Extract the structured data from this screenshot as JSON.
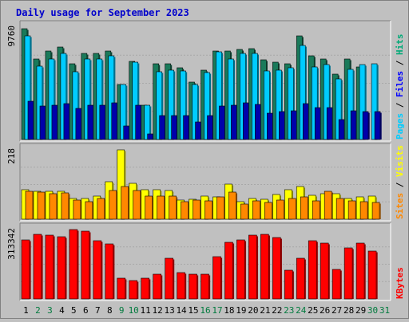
{
  "chart_data": {
    "type": "bar",
    "title": "Daily usage for September 2023",
    "categories": [
      "1",
      "2",
      "3",
      "4",
      "5",
      "6",
      "7",
      "8",
      "9",
      "10",
      "11",
      "12",
      "13",
      "14",
      "15",
      "16",
      "17",
      "18",
      "19",
      "20",
      "21",
      "22",
      "23",
      "24",
      "25",
      "26",
      "27",
      "28",
      "29",
      "30",
      "31"
    ],
    "weekend_days": [
      "2",
      "3",
      "9",
      "10",
      "16",
      "17",
      "23",
      "24",
      "30",
      "31"
    ],
    "panels": [
      {
        "id": "pages-files-hits",
        "scale_label": "9760",
        "ymax": 9760,
        "legend": [
          "Pages",
          "Files",
          "Hits"
        ],
        "series": [
          {
            "name": "Hits",
            "color": "#1a7a5a",
            "values": [
              9650,
              7000,
              7650,
              8000,
              6600,
              7500,
              7500,
              7700,
              4800,
              6800,
              3000,
              6600,
              6600,
              6200,
              5000,
              6000,
              7700,
              7650,
              7800,
              7900,
              6900,
              6700,
              6600,
              9000,
              7250,
              7000,
              5700,
              7000,
              6300,
              null,
              null
            ]
          },
          {
            "name": "Files",
            "color": "#00ccff",
            "values": [
              9000,
              6400,
              7000,
              7500,
              5900,
              7000,
              7000,
              7250,
              4750,
              6700,
              2950,
              5900,
              6000,
              5950,
              4800,
              5800,
              7600,
              7000,
              7500,
              7500,
              5950,
              6000,
              6200,
              8200,
              6300,
              6500,
              5250,
              6100,
              6500,
              6550,
              null
            ]
          },
          {
            "name": "Pages",
            "color": "#0000aa",
            "values": [
              3300,
              2900,
              3000,
              3100,
              2700,
              3000,
              3000,
              3150,
              1200,
              3000,
              500,
              2100,
              2100,
              2100,
              1500,
              2100,
              2900,
              3000,
              3200,
              3050,
              2300,
              2400,
              2500,
              3100,
              2800,
              2800,
              1700,
              2500,
              2400,
              2400,
              null
            ]
          }
        ]
      },
      {
        "id": "visits-sites",
        "scale_label": "218",
        "ymax": 218,
        "legend": [
          "Sites",
          "Visits"
        ],
        "series": [
          {
            "name": "Visits",
            "color": "#ffff00",
            "values": [
              92,
              88,
              87,
              88,
              65,
              64,
              72,
              118,
              218,
              113,
              92,
              92,
              90,
              60,
              62,
              72,
              70,
              110,
              55,
              65,
              62,
              78,
              92,
              102,
              75,
              80,
              80,
              65,
              70,
              72,
              null
            ]
          },
          {
            "name": "Sites",
            "color": "#ff8800",
            "values": [
              88,
              84,
              80,
              82,
              60,
              56,
              64,
              90,
              102,
              90,
              72,
              72,
              72,
              55,
              60,
              58,
              70,
              85,
              48,
              58,
              52,
              60,
              66,
              70,
              58,
              88,
              64,
              58,
              54,
              52,
              null
            ]
          }
        ]
      },
      {
        "id": "kbytes",
        "scale_label": "313342",
        "ymax": 313342,
        "legend": [
          "KBytes"
        ],
        "series": [
          {
            "name": "KBytes",
            "color": "#ff0000",
            "values": [
              265000,
              293000,
              288000,
              282000,
              313342,
              305000,
              262000,
              250000,
              95000,
              82000,
              92000,
              113000,
              185000,
              120000,
              110000,
              110000,
              190000,
              255000,
              268000,
              288000,
              290000,
              278000,
              130000,
              182000,
              262000,
              252000,
              135000,
              232000,
              252000,
              215000,
              null
            ]
          }
        ]
      }
    ]
  }
}
